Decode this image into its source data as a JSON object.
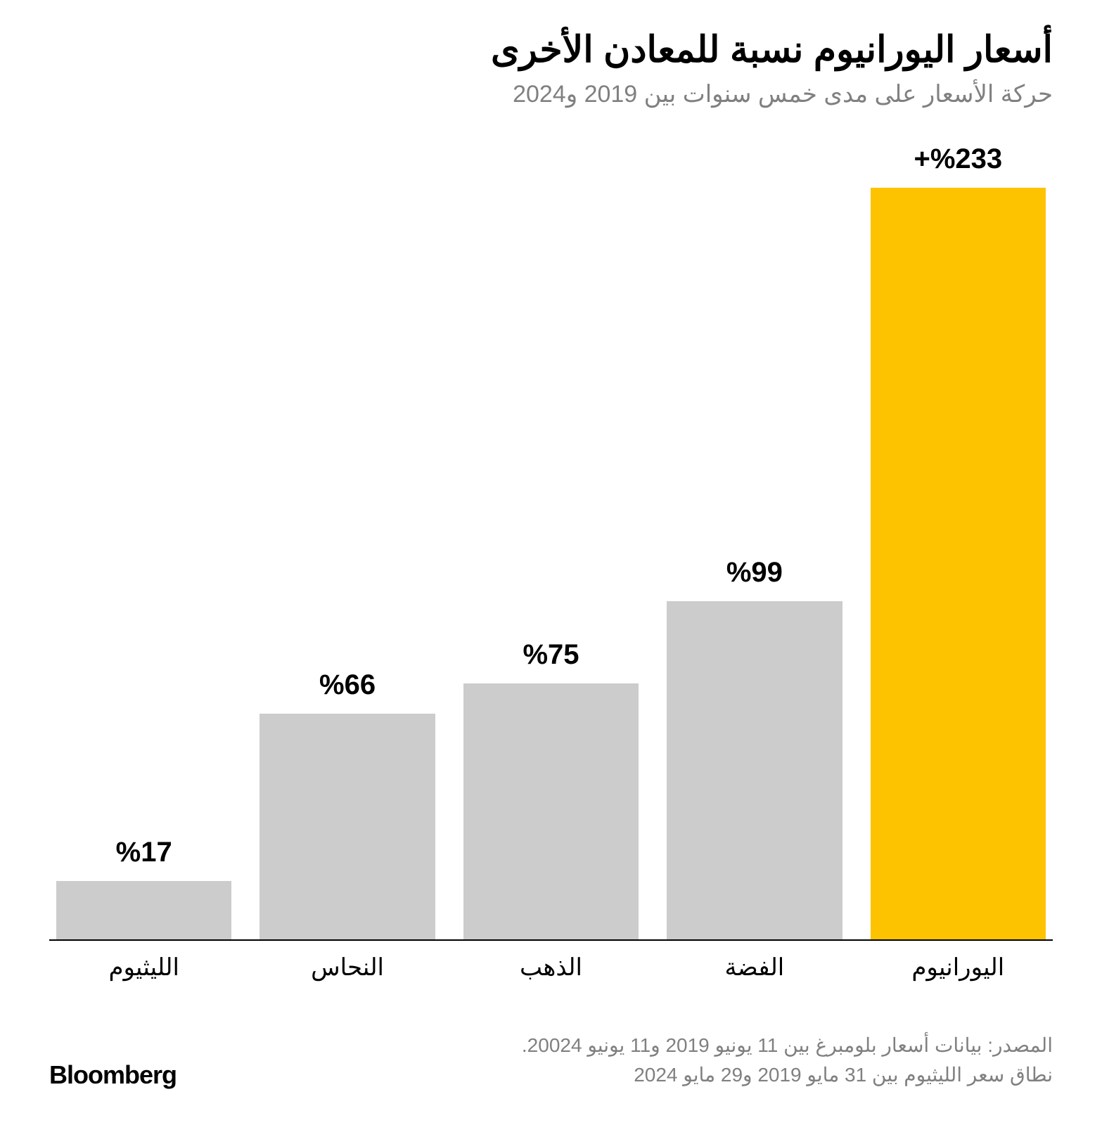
{
  "header": {
    "title": "أسعار اليورانيوم نسبة للمعادن الأخرى",
    "subtitle": "حركة الأسعار على مدى خمس سنوات بين 2019 و2024"
  },
  "chart": {
    "type": "bar",
    "ymax": 233,
    "background_color": "#ffffff",
    "axis_color": "#000000",
    "value_label_fontsize": 40,
    "category_label_fontsize": 34,
    "default_bar_color": "#cccccc",
    "highlight_bar_color": "#fdc300",
    "bars": [
      {
        "category": "اليورانيوم",
        "value": 233,
        "label": "%233+",
        "color": "#fdc300"
      },
      {
        "category": "الفضة",
        "value": 99,
        "label": "%99",
        "color": "#cccccc"
      },
      {
        "category": "الذهب",
        "value": 75,
        "label": "%75",
        "color": "#cccccc"
      },
      {
        "category": "النحاس",
        "value": 66,
        "label": "%66",
        "color": "#cccccc"
      },
      {
        "category": "الليثيوم",
        "value": 17,
        "label": "%17",
        "color": "#cccccc"
      }
    ]
  },
  "footer": {
    "source_line1": "المصدر: بيانات أسعار بلومبرغ  بين 11 يونيو 2019 و11 يونيو 20024.",
    "source_line2": "نطاق سعر الليثيوم بين 31 مايو 2019 و29 مايو 2024",
    "brand": "Bloomberg"
  },
  "colors": {
    "text_primary": "#000000",
    "text_secondary": "#808080",
    "background": "#ffffff"
  }
}
